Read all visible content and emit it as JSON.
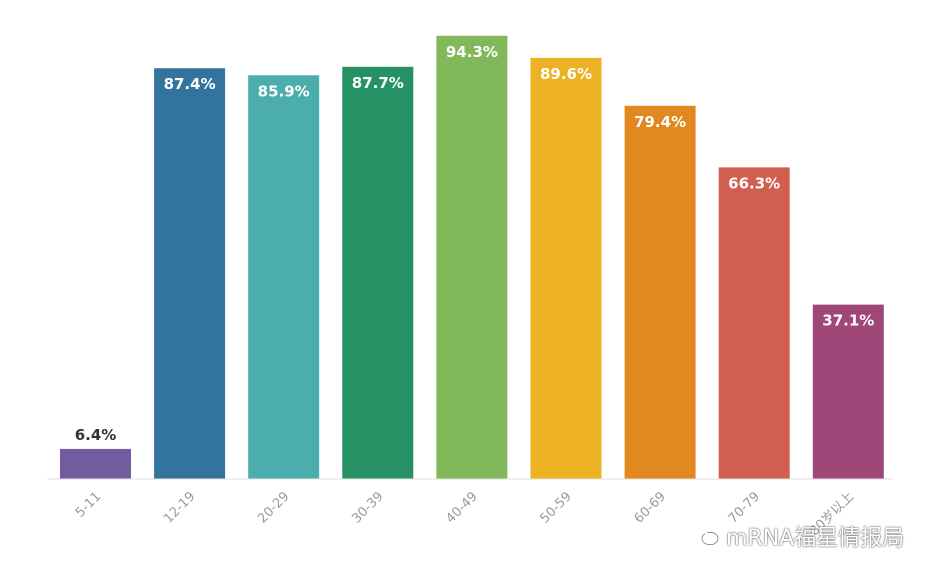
{
  "chart_data": {
    "type": "bar",
    "categories": [
      "5-11",
      "12-19",
      "20-29",
      "30-39",
      "40-49",
      "50-59",
      "60-69",
      "70-79",
      "80岁以上"
    ],
    "values": [
      6.4,
      87.4,
      85.9,
      87.7,
      94.3,
      89.6,
      79.4,
      66.3,
      37.1
    ],
    "value_labels": [
      "6.4%",
      "87.4%",
      "85.9%",
      "87.7%",
      "94.3%",
      "89.6%",
      "79.4%",
      "66.3%",
      "37.1%"
    ],
    "colors": [
      "#735BA0",
      "#33749E",
      "#4BAEAD",
      "#279166",
      "#81B85A",
      "#EDB223",
      "#E1881E",
      "#D05F50",
      "#9E4778"
    ],
    "ylim": [
      0,
      100
    ],
    "title": "",
    "xlabel": "",
    "ylabel": "",
    "grid": false,
    "legend": "none"
  },
  "watermark": {
    "text": "mRNA福星情报局",
    "icon": "wechat-icon"
  }
}
